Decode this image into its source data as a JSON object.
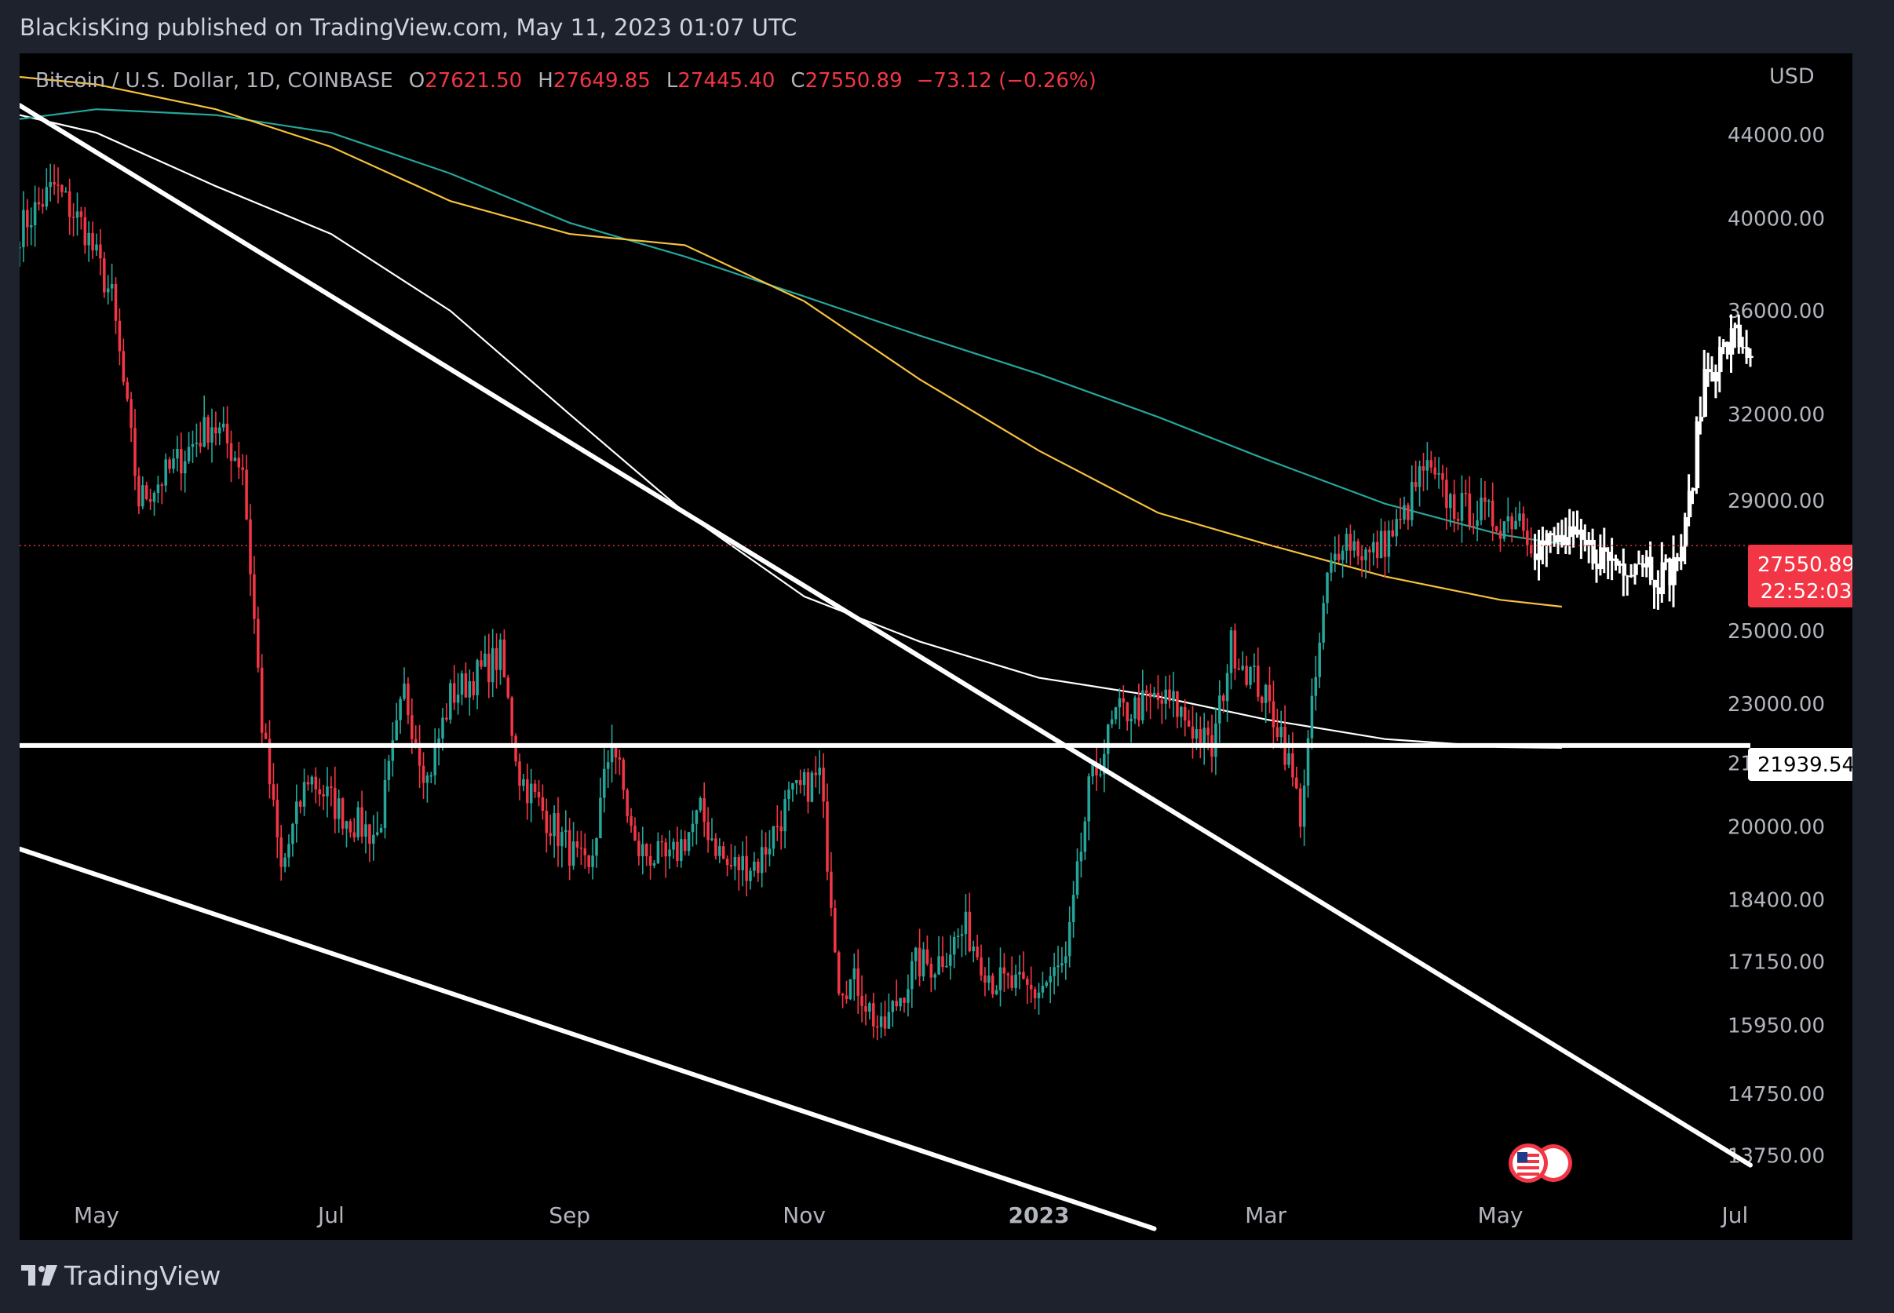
{
  "header": {
    "published_text": "BlackisKing published on TradingView.com, May 11, 2023 01:07 UTC"
  },
  "legend": {
    "symbol": "Bitcoin / U.S. Dollar, 1D, COINBASE",
    "open_label": "O",
    "open_value": "27621.50",
    "high_label": "H",
    "high_value": "27649.85",
    "low_label": "L",
    "low_value": "27445.40",
    "close_label": "C",
    "close_value": "27550.89",
    "change": "−73.12 (−0.26%)"
  },
  "axis": {
    "currency": "USD"
  },
  "price_tag": {
    "value": "27550.89",
    "countdown": "22:52:03"
  },
  "level_tag": {
    "value": "21939.54"
  },
  "footer": {
    "brand": "TradingView"
  },
  "colors": {
    "up": "#26a69a",
    "down": "#f23645",
    "drawing": "#ffffff",
    "ma_teal": "#26a69a",
    "ma_yellow": "#f7c23c",
    "ma_white": "#ffffff",
    "background": "#000000",
    "frame": "#1e222d",
    "axis_text": "#b2b5be"
  },
  "chart_data": {
    "type": "candlestick",
    "y_scale": "log",
    "ylim": [
      13200,
      47000
    ],
    "x_range": [
      "2022-04-11",
      "2023-07-05"
    ],
    "y_ticks": [
      44000,
      40000,
      36000,
      32000,
      29000,
      25000,
      23000,
      21500,
      20000,
      18400,
      17150,
      15950,
      14750,
      13750
    ],
    "y_tick_labels": [
      "44000.00",
      "40000.00",
      "36000.00",
      "32000.00",
      "29000.00",
      "25000.00",
      "23000.00",
      "21500.00",
      "20000.00",
      "18400.00",
      "17150.00",
      "15950.00",
      "14750.00",
      "13750.00"
    ],
    "x_ticks": [
      {
        "date": "2022-05-01",
        "label": "May"
      },
      {
        "date": "2022-07-01",
        "label": "Jul"
      },
      {
        "date": "2022-09-01",
        "label": "Sep"
      },
      {
        "date": "2022-11-01",
        "label": "Nov"
      },
      {
        "date": "2023-01-01",
        "label": "2023"
      },
      {
        "date": "2023-03-01",
        "label": "Mar"
      },
      {
        "date": "2023-05-01",
        "label": "May"
      },
      {
        "date": "2023-07-01",
        "label": "Jul"
      }
    ],
    "last_price": 27550.89,
    "horizontal_level": 21939.54,
    "close_anchors": [
      [
        "2022-04-11",
        39500
      ],
      [
        "2022-04-20",
        41500
      ],
      [
        "2022-04-28",
        39500
      ],
      [
        "2022-05-05",
        36500
      ],
      [
        "2022-05-10",
        31000
      ],
      [
        "2022-05-12",
        29000
      ],
      [
        "2022-05-20",
        30000
      ],
      [
        "2022-05-31",
        31700
      ],
      [
        "2022-06-08",
        30200
      ],
      [
        "2022-06-13",
        22500
      ],
      [
        "2022-06-18",
        19000
      ],
      [
        "2022-06-25",
        21200
      ],
      [
        "2022-07-05",
        20200
      ],
      [
        "2022-07-13",
        19800
      ],
      [
        "2022-07-20",
        23300
      ],
      [
        "2022-07-26",
        21100
      ],
      [
        "2022-08-01",
        23200
      ],
      [
        "2022-08-14",
        24300
      ],
      [
        "2022-08-19",
        21200
      ],
      [
        "2022-08-27",
        20100
      ],
      [
        "2022-09-06",
        18900
      ],
      [
        "2022-09-12",
        22200
      ],
      [
        "2022-09-18",
        19500
      ],
      [
        "2022-09-27",
        19200
      ],
      [
        "2022-10-05",
        20300
      ],
      [
        "2022-10-12",
        19100
      ],
      [
        "2022-10-20",
        19200
      ],
      [
        "2022-10-28",
        20600
      ],
      [
        "2022-11-05",
        21200
      ],
      [
        "2022-11-08",
        18500
      ],
      [
        "2022-11-10",
        16800
      ],
      [
        "2022-11-15",
        16700
      ],
      [
        "2022-11-21",
        15800
      ],
      [
        "2022-11-30",
        17100
      ],
      [
        "2022-12-05",
        17100
      ],
      [
        "2022-12-13",
        17800
      ],
      [
        "2022-12-20",
        16800
      ],
      [
        "2022-12-31",
        16550
      ],
      [
        "2023-01-08",
        17100
      ],
      [
        "2023-01-14",
        20800
      ],
      [
        "2023-01-21",
        22700
      ],
      [
        "2023-01-31",
        23100
      ],
      [
        "2023-02-05",
        23000
      ],
      [
        "2023-02-15",
        21800
      ],
      [
        "2023-02-20",
        24600
      ],
      [
        "2023-02-27",
        23500
      ],
      [
        "2023-03-05",
        22300
      ],
      [
        "2023-03-10",
        20300
      ],
      [
        "2023-03-13",
        22800
      ],
      [
        "2023-03-17",
        26500
      ],
      [
        "2023-03-21",
        27900
      ],
      [
        "2023-03-28",
        27200
      ],
      [
        "2023-04-05",
        28200
      ],
      [
        "2023-04-11",
        30100
      ],
      [
        "2023-04-19",
        28800
      ],
      [
        "2023-04-26",
        28600
      ],
      [
        "2023-05-01",
        28300
      ],
      [
        "2023-05-06",
        28600
      ],
      [
        "2023-05-10",
        27550
      ],
      [
        "2023-05-18",
        27700
      ],
      [
        "2023-05-26",
        27300
      ],
      [
        "2023-06-01",
        27000
      ],
      [
        "2023-06-07",
        27200
      ],
      [
        "2023-06-11",
        26600
      ],
      [
        "2023-06-15",
        26900
      ],
      [
        "2023-06-18",
        28000
      ],
      [
        "2023-06-20",
        30000
      ],
      [
        "2023-06-23",
        33500
      ],
      [
        "2023-06-27",
        34200
      ],
      [
        "2023-07-01",
        35000
      ],
      [
        "2023-07-05",
        34200
      ]
    ],
    "moving_averages": [
      {
        "color": "ma_white",
        "points": [
          [
            "2022-04-11",
            45000
          ],
          [
            "2022-05-01",
            44100
          ],
          [
            "2022-06-01",
            41500
          ],
          [
            "2022-07-01",
            39300
          ],
          [
            "2022-08-01",
            36000
          ],
          [
            "2022-09-01",
            32000
          ],
          [
            "2022-10-01",
            28600
          ],
          [
            "2022-11-01",
            26000
          ],
          [
            "2022-12-01",
            24700
          ],
          [
            "2023-01-01",
            23700
          ],
          [
            "2023-02-01",
            23200
          ],
          [
            "2023-03-01",
            22600
          ],
          [
            "2023-04-01",
            22100
          ],
          [
            "2023-05-01",
            21900
          ],
          [
            "2023-05-17",
            21880
          ]
        ]
      },
      {
        "color": "ma_teal",
        "points": [
          [
            "2022-04-11",
            44800
          ],
          [
            "2022-05-01",
            45300
          ],
          [
            "2022-06-01",
            45000
          ],
          [
            "2022-07-01",
            44100
          ],
          [
            "2022-08-01",
            42100
          ],
          [
            "2022-09-01",
            39800
          ],
          [
            "2022-10-01",
            38300
          ],
          [
            "2022-11-01",
            36600
          ],
          [
            "2022-12-01",
            35000
          ],
          [
            "2023-01-01",
            33500
          ],
          [
            "2023-02-01",
            31900
          ],
          [
            "2023-03-01",
            30400
          ],
          [
            "2023-04-01",
            28900
          ],
          [
            "2023-05-01",
            27900
          ],
          [
            "2023-05-17",
            27600
          ]
        ]
      },
      {
        "color": "ma_yellow",
        "points": [
          [
            "2022-04-11",
            47000
          ],
          [
            "2022-05-01",
            46600
          ],
          [
            "2022-06-01",
            45300
          ],
          [
            "2022-07-01",
            43400
          ],
          [
            "2022-08-01",
            40800
          ],
          [
            "2022-09-01",
            39300
          ],
          [
            "2022-10-01",
            38800
          ],
          [
            "2022-11-01",
            36400
          ],
          [
            "2022-12-01",
            33300
          ],
          [
            "2023-01-01",
            30700
          ],
          [
            "2023-02-01",
            28600
          ],
          [
            "2023-03-01",
            27600
          ],
          [
            "2023-04-01",
            26600
          ],
          [
            "2023-05-01",
            25900
          ],
          [
            "2023-05-17",
            25700
          ]
        ]
      }
    ],
    "trendlines": [
      {
        "from": [
          "2022-04-11",
          45500
        ],
        "to": [
          "2023-07-05",
          13600
        ]
      },
      {
        "from": [
          "2022-04-11",
          19500
        ],
        "to": [
          "2023-01-31",
          12650
        ]
      }
    ],
    "projection_start": "2023-05-10"
  }
}
